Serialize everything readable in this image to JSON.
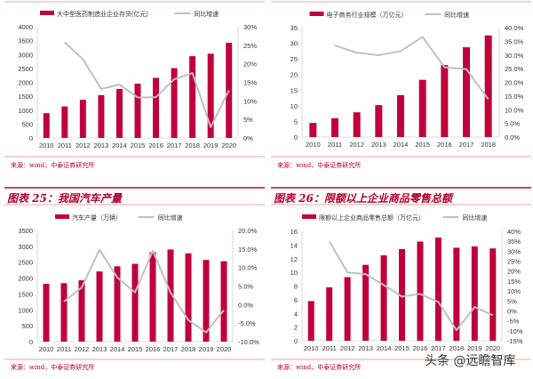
{
  "source_text": "来源：wind，中泰证券研究所",
  "watermark": "头条 @远瞻智库",
  "colors": {
    "bar": "#c0003c",
    "line": "#c0c0c0",
    "accent_line": "#e8848f",
    "axis": "#bfbfbf"
  },
  "chart_data": [
    {
      "type": "bar+line",
      "title": "",
      "categories": [
        "2010",
        "2011",
        "2012",
        "2013",
        "2014",
        "2015",
        "2016",
        "2017",
        "2018",
        "2019",
        "2020"
      ],
      "series": [
        {
          "name": "大中型医药制造业企业存货(亿元)",
          "type": "bar",
          "axis": "left",
          "values": [
            890,
            1130,
            1370,
            1540,
            1760,
            1950,
            2160,
            2510,
            2940,
            3030,
            3420
          ]
        },
        {
          "name": "同比增速",
          "type": "line",
          "axis": "right",
          "values": [
            null,
            25.8,
            21.2,
            13.2,
            14.4,
            10.9,
            11.0,
            15.8,
            17.5,
            2.9,
            12.8
          ]
        }
      ],
      "left_axis": {
        "range": [
          0,
          4000
        ],
        "ticks": [
          "0",
          "500",
          "1000",
          "1500",
          "2000",
          "2500",
          "3000",
          "3500",
          "4000"
        ]
      },
      "right_axis": {
        "range": [
          0,
          30
        ],
        "ticks": [
          "0%",
          "5%",
          "10%",
          "15%",
          "20%",
          "25%",
          "30%"
        ]
      },
      "grid": false,
      "legend": "top"
    },
    {
      "type": "bar+line",
      "title": "",
      "categories": [
        "2010",
        "2011",
        "2012",
        "2013",
        "2014",
        "2015",
        "2016",
        "2017",
        "2018"
      ],
      "series": [
        {
          "name": "电子商务行业规模（万亿元）",
          "type": "bar",
          "axis": "left",
          "values": [
            4.5,
            6.0,
            7.9,
            10.2,
            13.4,
            18.3,
            23.0,
            28.7,
            32.5
          ]
        },
        {
          "name": "同比增速",
          "type": "line",
          "axis": "right",
          "values": [
            null,
            33.5,
            30.8,
            29.9,
            31.4,
            36.6,
            25.5,
            24.8,
            13.8
          ]
        }
      ],
      "left_axis": {
        "range": [
          0,
          35
        ],
        "ticks": [
          "0",
          "5",
          "10",
          "15",
          "20",
          "25",
          "30",
          "35"
        ]
      },
      "right_axis": {
        "range": [
          0,
          40
        ],
        "ticks": [
          "0.0%",
          "5.0%",
          "10.0%",
          "15.0%",
          "20.0%",
          "25.0%",
          "30.0%",
          "35.0%",
          "40.0%"
        ]
      },
      "grid": false,
      "legend": "top"
    },
    {
      "type": "bar+line",
      "title": "图表 25：我国汽车产量",
      "categories": [
        "2010",
        "2011",
        "2012",
        "2013",
        "2014",
        "2015",
        "2016",
        "2017",
        "2018",
        "2019",
        "2020"
      ],
      "series": [
        {
          "name": "汽车产量（万辆）",
          "type": "bar",
          "axis": "left",
          "values": [
            1820,
            1840,
            1930,
            2210,
            2370,
            2450,
            2810,
            2900,
            2780,
            2570,
            2530
          ]
        },
        {
          "name": "同比增速",
          "type": "line",
          "axis": "right",
          "values": [
            null,
            0.8,
            4.6,
            14.8,
            7.3,
            3.3,
            14.5,
            3.2,
            -4.2,
            -7.5,
            -1.5
          ]
        }
      ],
      "left_axis": {
        "range": [
          0,
          3500
        ],
        "ticks": [
          "0",
          "500",
          "1000",
          "1500",
          "2000",
          "2500",
          "3000",
          "3500"
        ]
      },
      "right_axis": {
        "range": [
          -10,
          20
        ],
        "ticks": [
          "-10.0%",
          "-5.0%",
          "0.0%",
          "5.0%",
          "10.0%",
          "15.0%",
          "20.0%"
        ]
      },
      "grid": false,
      "legend": "top"
    },
    {
      "type": "bar+line",
      "title": "图表 26：限额以上企业商品零售总额",
      "categories": [
        "2010",
        "2011",
        "2012",
        "2013",
        "2014",
        "2015",
        "2016",
        "2017",
        "2018",
        "2019",
        "2020"
      ],
      "series": [
        {
          "name": "限额以上企业商品零售总额（万亿元）",
          "type": "bar",
          "axis": "left",
          "values": [
            5.8,
            7.8,
            9.3,
            11.1,
            12.5,
            13.4,
            14.5,
            15.1,
            13.6,
            13.8,
            13.5
          ]
        },
        {
          "name": "同比增速",
          "type": "line",
          "axis": "right",
          "values": [
            null,
            35.0,
            19.3,
            18.5,
            13.0,
            7.2,
            8.5,
            4.5,
            -9.7,
            2.0,
            -2.2
          ]
        }
      ],
      "left_axis": {
        "range": [
          0,
          16
        ],
        "ticks": [
          "0",
          "2",
          "4",
          "6",
          "8",
          "10",
          "12",
          "14",
          "16"
        ]
      },
      "right_axis": {
        "range": [
          -15,
          40
        ],
        "ticks": [
          "-15%",
          "-10%",
          "-5%",
          "0%",
          "5%",
          "10%",
          "15%",
          "20%",
          "25%",
          "30%",
          "35%",
          "40%"
        ]
      },
      "grid": false,
      "legend": "top"
    }
  ]
}
